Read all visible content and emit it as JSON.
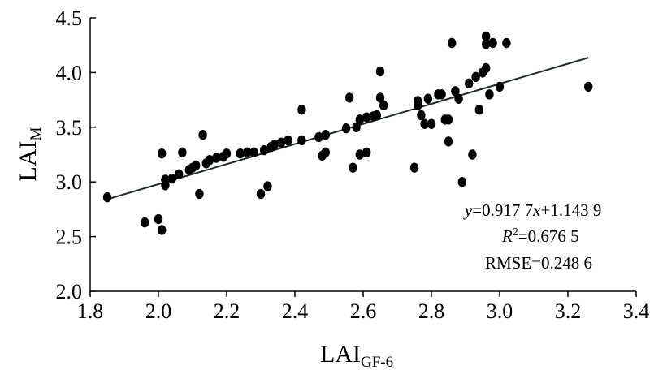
{
  "chart_data": {
    "type": "scatter",
    "xlabel": {
      "main": "LAI",
      "sub": "GF-6"
    },
    "ylabel": {
      "main": "LAI",
      "sub": "M"
    },
    "xlim": [
      1.8,
      3.4
    ],
    "ylim": [
      2.0,
      4.5
    ],
    "x_ticks": [
      "1.8",
      "2.0",
      "2.2",
      "2.4",
      "2.6",
      "2.8",
      "3.0",
      "3.2",
      "3.4"
    ],
    "y_ticks": [
      "2.0",
      "2.5",
      "3.0",
      "3.5",
      "4.0",
      "4.5"
    ],
    "grid": false,
    "marker_color": "#000000",
    "fit": {
      "slope": 0.9177,
      "intercept": 1.1439,
      "x_range": [
        1.85,
        3.26
      ]
    },
    "annotations": {
      "equation": {
        "y": "y",
        "mid": "=0.917 7",
        "x": "x",
        "tail": "+1.143 9"
      },
      "r2": {
        "r": "R",
        "sup": "2",
        "rest": "=0.676 5"
      },
      "rmse": "RMSE=0.248 6"
    },
    "points": [
      {
        "x": 1.85,
        "y": 2.86
      },
      {
        "x": 1.96,
        "y": 2.63
      },
      {
        "x": 2.0,
        "y": 2.66
      },
      {
        "x": 2.01,
        "y": 2.56
      },
      {
        "x": 2.01,
        "y": 3.26
      },
      {
        "x": 2.02,
        "y": 2.97
      },
      {
        "x": 2.02,
        "y": 3.02
      },
      {
        "x": 2.04,
        "y": 3.03
      },
      {
        "x": 2.06,
        "y": 3.07
      },
      {
        "x": 2.07,
        "y": 3.27
      },
      {
        "x": 2.09,
        "y": 3.11
      },
      {
        "x": 2.1,
        "y": 3.13
      },
      {
        "x": 2.11,
        "y": 3.15
      },
      {
        "x": 2.12,
        "y": 2.89
      },
      {
        "x": 2.13,
        "y": 3.43
      },
      {
        "x": 2.14,
        "y": 3.17
      },
      {
        "x": 2.15,
        "y": 3.2
      },
      {
        "x": 2.17,
        "y": 3.22
      },
      {
        "x": 2.19,
        "y": 3.23
      },
      {
        "x": 2.2,
        "y": 3.26
      },
      {
        "x": 2.24,
        "y": 3.26
      },
      {
        "x": 2.26,
        "y": 3.27
      },
      {
        "x": 2.28,
        "y": 3.27
      },
      {
        "x": 2.3,
        "y": 2.89
      },
      {
        "x": 2.31,
        "y": 3.29
      },
      {
        "x": 2.32,
        "y": 2.96
      },
      {
        "x": 2.33,
        "y": 3.32
      },
      {
        "x": 2.34,
        "y": 3.34
      },
      {
        "x": 2.36,
        "y": 3.36
      },
      {
        "x": 2.38,
        "y": 3.38
      },
      {
        "x": 2.42,
        "y": 3.66
      },
      {
        "x": 2.42,
        "y": 3.38
      },
      {
        "x": 2.47,
        "y": 3.41
      },
      {
        "x": 2.48,
        "y": 3.24
      },
      {
        "x": 2.49,
        "y": 3.27
      },
      {
        "x": 2.49,
        "y": 3.43
      },
      {
        "x": 2.55,
        "y": 3.49
      },
      {
        "x": 2.56,
        "y": 3.77
      },
      {
        "x": 2.57,
        "y": 3.13
      },
      {
        "x": 2.58,
        "y": 3.5
      },
      {
        "x": 2.59,
        "y": 3.25
      },
      {
        "x": 2.59,
        "y": 3.57
      },
      {
        "x": 2.61,
        "y": 3.27
      },
      {
        "x": 2.61,
        "y": 3.59
      },
      {
        "x": 2.63,
        "y": 3.6
      },
      {
        "x": 2.64,
        "y": 3.61
      },
      {
        "x": 2.65,
        "y": 4.01
      },
      {
        "x": 2.65,
        "y": 3.77
      },
      {
        "x": 2.66,
        "y": 3.7
      },
      {
        "x": 2.75,
        "y": 3.13
      },
      {
        "x": 2.76,
        "y": 3.7
      },
      {
        "x": 2.76,
        "y": 3.74
      },
      {
        "x": 2.77,
        "y": 3.61
      },
      {
        "x": 2.78,
        "y": 3.53
      },
      {
        "x": 2.79,
        "y": 3.76
      },
      {
        "x": 2.8,
        "y": 3.53
      },
      {
        "x": 2.82,
        "y": 3.8
      },
      {
        "x": 2.83,
        "y": 3.8
      },
      {
        "x": 2.84,
        "y": 3.57
      },
      {
        "x": 2.85,
        "y": 3.57
      },
      {
        "x": 2.85,
        "y": 3.37
      },
      {
        "x": 2.86,
        "y": 4.27
      },
      {
        "x": 2.87,
        "y": 3.83
      },
      {
        "x": 2.88,
        "y": 3.76
      },
      {
        "x": 2.89,
        "y": 3.0
      },
      {
        "x": 2.91,
        "y": 3.9
      },
      {
        "x": 2.92,
        "y": 3.25
      },
      {
        "x": 2.93,
        "y": 3.96
      },
      {
        "x": 2.94,
        "y": 3.66
      },
      {
        "x": 2.95,
        "y": 4.0
      },
      {
        "x": 2.96,
        "y": 4.04
      },
      {
        "x": 2.96,
        "y": 4.33
      },
      {
        "x": 2.96,
        "y": 4.26
      },
      {
        "x": 2.97,
        "y": 3.8
      },
      {
        "x": 2.98,
        "y": 4.27
      },
      {
        "x": 3.0,
        "y": 3.87
      },
      {
        "x": 3.02,
        "y": 4.27
      },
      {
        "x": 3.26,
        "y": 3.87
      }
    ]
  }
}
